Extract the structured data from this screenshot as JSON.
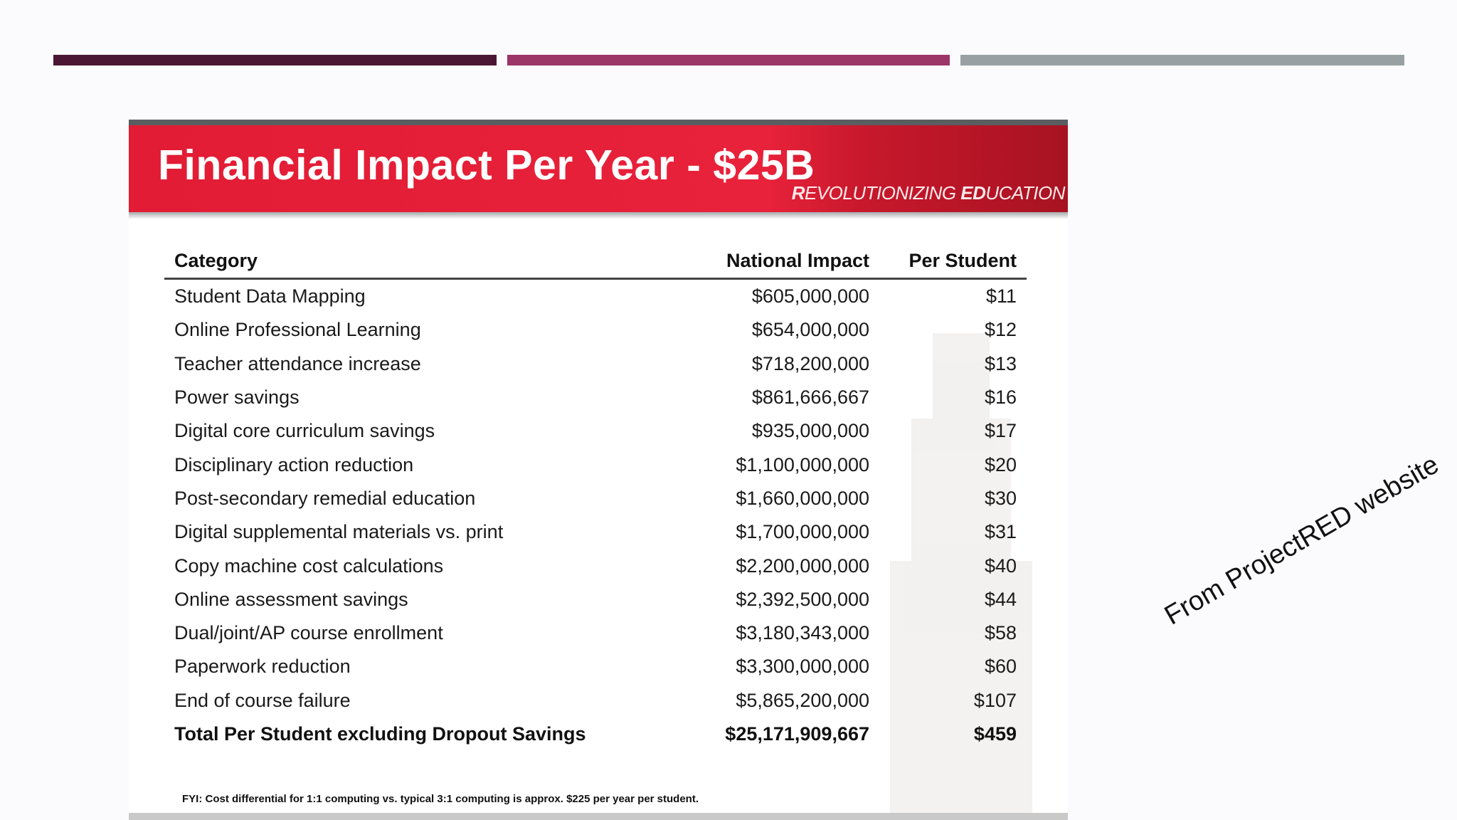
{
  "slide": {
    "accent_colors": [
      "#4a1633",
      "#9c3568",
      "#98a0a4"
    ],
    "caption": "From ProjectRED website"
  },
  "image": {
    "title": "Financial Impact  Per Year - $25B",
    "brand_r": "R",
    "brand_1": "EVOLUTIONIZING ",
    "brand_ed": "ED",
    "brand_2": "UCATION",
    "table": {
      "headers": [
        "Category",
        "National Impact",
        "Per Student"
      ],
      "rows": [
        {
          "category": "Student Data Mapping",
          "national": "$605,000,000",
          "per_student": "$11"
        },
        {
          "category": "Online Professional Learning",
          "national": "$654,000,000",
          "per_student": "$12"
        },
        {
          "category": "Teacher attendance increase",
          "national": "$718,200,000",
          "per_student": "$13"
        },
        {
          "category": "Power savings",
          "national": "$861,666,667",
          "per_student": "$16"
        },
        {
          "category": "Digital core curriculum savings",
          "national": "$935,000,000",
          "per_student": "$17"
        },
        {
          "category": "Disciplinary action reduction",
          "national": "$1,100,000,000",
          "per_student": "$20"
        },
        {
          "category": "Post-secondary remedial education",
          "national": "$1,660,000,000",
          "per_student": "$30"
        },
        {
          "category": "Digital supplemental materials vs. print",
          "national": "$1,700,000,000",
          "per_student": "$31"
        },
        {
          "category": "Copy machine cost calculations",
          "national": "$2,200,000,000",
          "per_student": "$40"
        },
        {
          "category": "Online assessment savings",
          "national": "$2,392,500,000",
          "per_student": "$44"
        },
        {
          "category": "Dual/joint/AP course enrollment",
          "national": "$3,180,343,000",
          "per_student": "$58"
        },
        {
          "category": "Paperwork reduction",
          "national": "$3,300,000,000",
          "per_student": "$60"
        },
        {
          "category": "End of course failure",
          "national": "$5,865,200,000",
          "per_student": "$107"
        }
      ],
      "total": {
        "category": "Total Per Student excluding Dropout Savings",
        "national": "$25,171,909,667",
        "per_student": "$459"
      }
    },
    "fyi": "FYI:  Cost differential for 1:1 computing vs. typical 3:1 computing  is approx. $225 per year per student."
  }
}
